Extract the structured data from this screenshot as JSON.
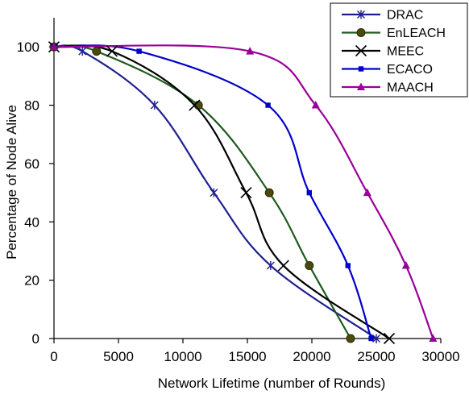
{
  "chart_data": {
    "type": "line",
    "title": "",
    "xlabel": "Network Lifetime (number of Rounds)",
    "ylabel": "Percentage of Node Alive",
    "xlim": [
      0,
      30000
    ],
    "ylim": [
      0,
      110
    ],
    "xticks": [
      0,
      5000,
      10000,
      15000,
      20000,
      25000,
      30000
    ],
    "yticks": [
      0,
      20,
      40,
      60,
      80,
      100
    ],
    "xtick_labels": [
      "0",
      "5000",
      "10000",
      "15000",
      "20000",
      "25000",
      "30000"
    ],
    "ytick_labels": [
      "0",
      "20",
      "40",
      "60",
      "80",
      "100"
    ],
    "grid": false,
    "legend_position": "top-right",
    "series": [
      {
        "name": "DRAC",
        "color": "#1f1f8f",
        "marker": "star",
        "points": [
          [
            0,
            100
          ],
          [
            2200,
            98.5
          ],
          [
            7800,
            80
          ],
          [
            12400,
            50
          ],
          [
            16800,
            25
          ],
          [
            25000,
            0
          ]
        ]
      },
      {
        "name": "EnLEACH",
        "color": "#1e5a1e",
        "marker": "circle",
        "points": [
          [
            0,
            100
          ],
          [
            3300,
            98.5
          ],
          [
            11200,
            80
          ],
          [
            16700,
            50
          ],
          [
            19800,
            25
          ],
          [
            23000,
            0
          ]
        ]
      },
      {
        "name": "MEEC",
        "color": "#000000",
        "marker": "x",
        "points": [
          [
            0,
            100
          ],
          [
            4500,
            98.5
          ],
          [
            10900,
            80
          ],
          [
            14900,
            50
          ],
          [
            17800,
            25
          ],
          [
            26000,
            0
          ]
        ]
      },
      {
        "name": "ECACO",
        "color": "#0000cc",
        "marker": "square",
        "points": [
          [
            0,
            100
          ],
          [
            6600,
            98.5
          ],
          [
            16600,
            80
          ],
          [
            19800,
            50
          ],
          [
            22800,
            25
          ],
          [
            24600,
            0
          ]
        ]
      },
      {
        "name": "MAACH",
        "color": "#990099",
        "marker": "triangle",
        "points": [
          [
            0,
            100
          ],
          [
            15200,
            98.5
          ],
          [
            20300,
            80
          ],
          [
            24300,
            50
          ],
          [
            27300,
            25
          ],
          [
            29400,
            0
          ]
        ]
      }
    ]
  }
}
